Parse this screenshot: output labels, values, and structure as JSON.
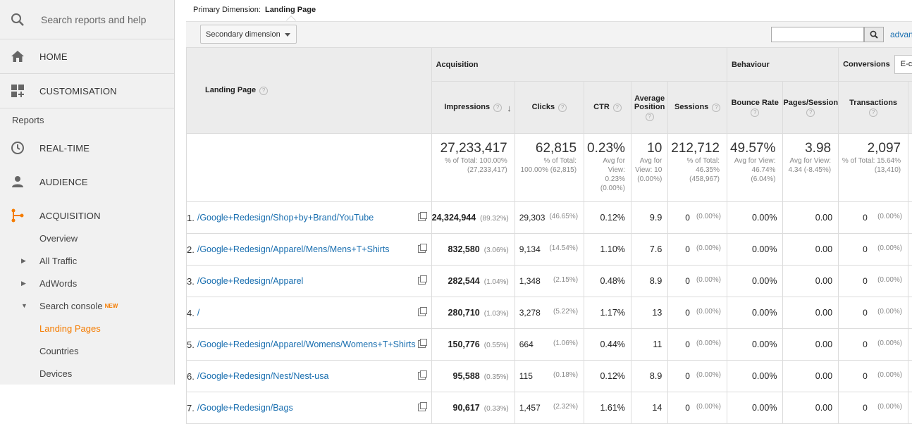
{
  "sidebar": {
    "search_placeholder": "Search reports and help",
    "home": "HOME",
    "customisation": "CUSTOMISATION",
    "reports_header": "Reports",
    "realtime": "REAL-TIME",
    "audience": "AUDIENCE",
    "acquisition": "ACQUISITION",
    "sub": {
      "overview": "Overview",
      "all_traffic": "All Traffic",
      "adwords": "AdWords",
      "search_console": "Search console",
      "new_badge": "NEW",
      "landing_pages": "Landing Pages",
      "countries": "Countries",
      "devices": "Devices"
    },
    "accent_color": "#f57c00"
  },
  "header": {
    "primary_label": "Primary Dimension:",
    "primary_value": "Landing Page",
    "secondary_dimension": "Secondary dimension",
    "advanced": "advan"
  },
  "table": {
    "lp_header": "Landing Page",
    "groups": {
      "acquisition": "Acquisition",
      "behaviour": "Behaviour",
      "conversions": "Conversions",
      "conv_select": "E-com"
    },
    "metrics": {
      "impressions": "Impressions",
      "clicks": "Clicks",
      "ctr": "CTR",
      "avg_position": "Average Position",
      "sessions": "Sessions",
      "bounce": "Bounce Rate",
      "pps": "Pages/Session",
      "transactions": "Transactions"
    },
    "totals": {
      "impressions": {
        "value": "27,233,417",
        "sub": "% of Total: 100.00% (27,233,417)"
      },
      "clicks": {
        "value": "62,815",
        "sub": "% of Total: 100.00% (62,815)"
      },
      "ctr": {
        "value": "0.23%",
        "sub": "Avg for View: 0.23% (0.00%)"
      },
      "avg_position": {
        "value": "10",
        "sub": "Avg for View: 10 (0.00%)"
      },
      "sessions": {
        "value": "212,712",
        "sub": "% of Total: 46.35% (458,967)"
      },
      "bounce": {
        "value": "49.57%",
        "sub": "Avg for View: 46.74% (6.04%)"
      },
      "pps": {
        "value": "3.98",
        "sub": "Avg for View: 4.34 (-8.45%)"
      },
      "transactions": {
        "value": "2,097",
        "sub": "% of Total: 15.64% (13,410)"
      }
    },
    "rows": [
      {
        "n": "1.",
        "page": "/Google+Redesign/Shop+by+Brand/YouTube",
        "imp": "24,324,944",
        "imp_pct": "(89.32%)",
        "clicks": "29,303",
        "clicks_pct": "(46.65%)",
        "ctr": "0.12%",
        "pos": "9.9",
        "sessions": "0",
        "sessions_pct": "(0.00%)",
        "bounce": "0.00%",
        "pps": "0.00",
        "trans": "0",
        "trans_pct": "(0.00%)"
      },
      {
        "n": "2.",
        "page": "/Google+Redesign/Apparel/Mens/Mens+T+Shirts",
        "imp": "832,580",
        "imp_pct": "(3.06%)",
        "clicks": "9,134",
        "clicks_pct": "(14.54%)",
        "ctr": "1.10%",
        "pos": "7.6",
        "sessions": "0",
        "sessions_pct": "(0.00%)",
        "bounce": "0.00%",
        "pps": "0.00",
        "trans": "0",
        "trans_pct": "(0.00%)"
      },
      {
        "n": "3.",
        "page": "/Google+Redesign/Apparel",
        "imp": "282,544",
        "imp_pct": "(1.04%)",
        "clicks": "1,348",
        "clicks_pct": "(2.15%)",
        "ctr": "0.48%",
        "pos": "8.9",
        "sessions": "0",
        "sessions_pct": "(0.00%)",
        "bounce": "0.00%",
        "pps": "0.00",
        "trans": "0",
        "trans_pct": "(0.00%)"
      },
      {
        "n": "4.",
        "page": "/",
        "imp": "280,710",
        "imp_pct": "(1.03%)",
        "clicks": "3,278",
        "clicks_pct": "(5.22%)",
        "ctr": "1.17%",
        "pos": "13",
        "sessions": "0",
        "sessions_pct": "(0.00%)",
        "bounce": "0.00%",
        "pps": "0.00",
        "trans": "0",
        "trans_pct": "(0.00%)"
      },
      {
        "n": "5.",
        "page": "/Google+Redesign/Apparel/Womens/Womens+T+Shirts",
        "imp": "150,776",
        "imp_pct": "(0.55%)",
        "clicks": "664",
        "clicks_pct": "(1.06%)",
        "ctr": "0.44%",
        "pos": "11",
        "sessions": "0",
        "sessions_pct": "(0.00%)",
        "bounce": "0.00%",
        "pps": "0.00",
        "trans": "0",
        "trans_pct": "(0.00%)"
      },
      {
        "n": "6.",
        "page": "/Google+Redesign/Nest/Nest-usa",
        "imp": "95,588",
        "imp_pct": "(0.35%)",
        "clicks": "115",
        "clicks_pct": "(0.18%)",
        "ctr": "0.12%",
        "pos": "8.9",
        "sessions": "0",
        "sessions_pct": "(0.00%)",
        "bounce": "0.00%",
        "pps": "0.00",
        "trans": "0",
        "trans_pct": "(0.00%)"
      },
      {
        "n": "7.",
        "page": "/Google+Redesign/Bags",
        "imp": "90,617",
        "imp_pct": "(0.33%)",
        "clicks": "1,457",
        "clicks_pct": "(2.32%)",
        "ctr": "1.61%",
        "pos": "14",
        "sessions": "0",
        "sessions_pct": "(0.00%)",
        "bounce": "0.00%",
        "pps": "0.00",
        "trans": "0",
        "trans_pct": "(0.00%)"
      }
    ]
  }
}
